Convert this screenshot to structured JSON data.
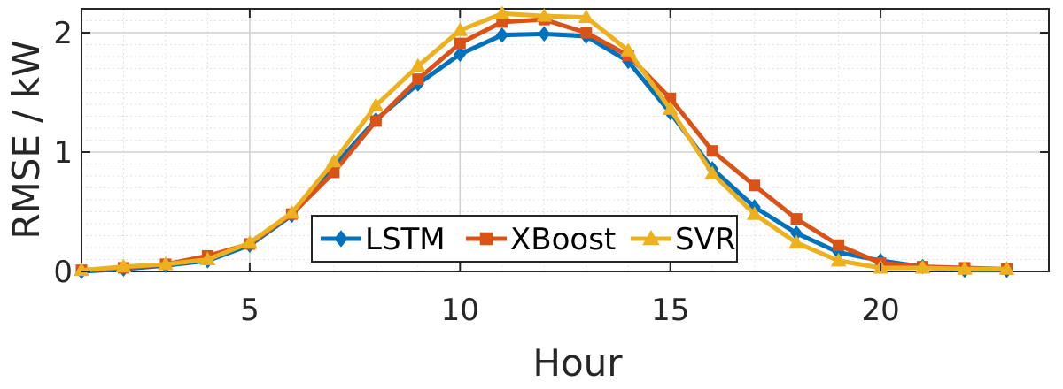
{
  "chart_data": {
    "type": "line",
    "title": "",
    "xlabel": "Hour",
    "ylabel": "RMSE / kW",
    "xlim": [
      1,
      24
    ],
    "ylim": [
      0,
      2.2
    ],
    "xticks": [
      5,
      10,
      15,
      20
    ],
    "yticks": [
      0,
      1,
      2
    ],
    "xtick_labels": [
      "5",
      "10",
      "15",
      "20"
    ],
    "ytick_labels": [
      "0",
      "1",
      "2"
    ],
    "grid": true,
    "minor_grid": true,
    "legend_position": "bottom-center",
    "x": [
      1,
      2,
      3,
      4,
      5,
      6,
      7,
      8,
      9,
      10,
      11,
      12,
      13,
      14,
      15,
      16,
      17,
      18,
      19,
      20,
      21,
      22,
      23
    ],
    "series": [
      {
        "name": "LSTM",
        "color": "#0072BD",
        "marker": "diamond",
        "values": [
          0.0,
          0.02,
          0.05,
          0.09,
          0.22,
          0.47,
          0.88,
          1.27,
          1.57,
          1.82,
          1.98,
          1.99,
          1.97,
          1.76,
          1.33,
          0.86,
          0.54,
          0.32,
          0.16,
          0.09,
          0.04,
          0.01,
          0.01
        ]
      },
      {
        "name": "XBoost",
        "color": "#D95319",
        "marker": "square",
        "values": [
          0.01,
          0.03,
          0.06,
          0.13,
          0.23,
          0.48,
          0.83,
          1.26,
          1.61,
          1.91,
          2.09,
          2.11,
          2.0,
          1.81,
          1.45,
          1.01,
          0.72,
          0.44,
          0.22,
          0.07,
          0.04,
          0.03,
          0.02
        ]
      },
      {
        "name": "SVR",
        "color": "#EDB120",
        "marker": "triangle",
        "values": [
          0.01,
          0.04,
          0.06,
          0.1,
          0.24,
          0.49,
          0.92,
          1.39,
          1.72,
          2.02,
          2.16,
          2.14,
          2.13,
          1.85,
          1.36,
          0.82,
          0.48,
          0.24,
          0.09,
          0.03,
          0.03,
          0.02,
          0.02
        ]
      }
    ]
  }
}
